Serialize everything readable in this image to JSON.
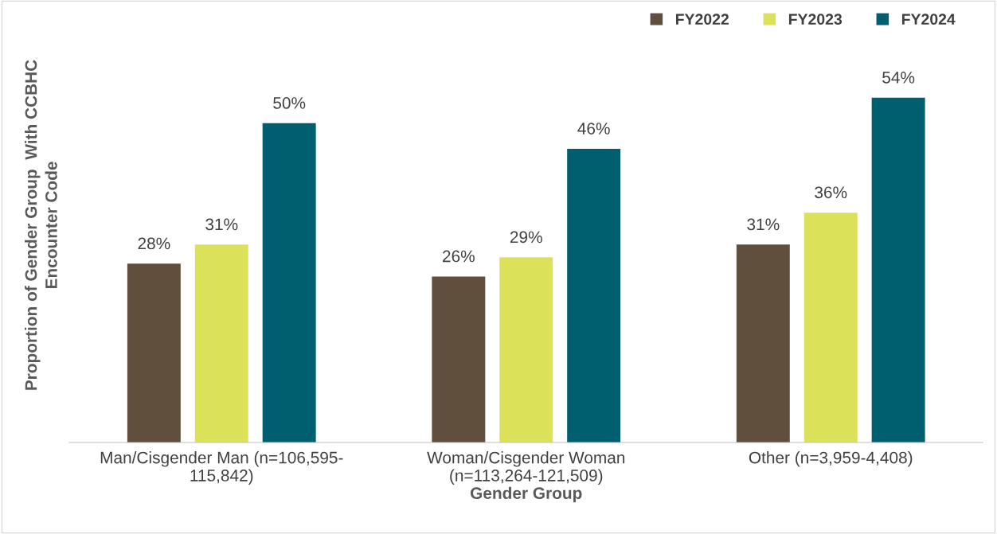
{
  "chart_data": {
    "type": "bar",
    "xlabel": "Gender Group",
    "ylabel": "Proportion of Gender Group  With CCBHC\nEncounter Code",
    "categories": [
      "Man/Cisgender Man (n=106,595-\n115,842)",
      "Woman/Cisgender Woman\n(n=113,264-121,509)",
      "Other (n=3,959-4,408)"
    ],
    "series": [
      {
        "name": "FY2022",
        "color": "#614f3d",
        "values": [
          28,
          26,
          31
        ],
        "value_labels": [
          "28%",
          "26%",
          "31%"
        ]
      },
      {
        "name": "FY2023",
        "color": "#dce15a",
        "values": [
          31,
          29,
          36
        ],
        "value_labels": [
          "31%",
          "29%",
          "36%"
        ]
      },
      {
        "name": "FY2024",
        "color": "#005f6e",
        "values": [
          50,
          46,
          54
        ],
        "value_labels": [
          "50%",
          "46%",
          "54%"
        ]
      }
    ],
    "tick_labels": "x",
    "grid": false,
    "legend": "top right"
  }
}
